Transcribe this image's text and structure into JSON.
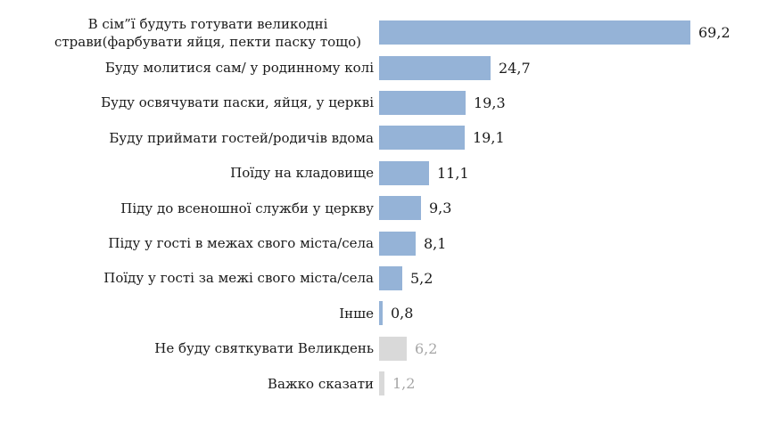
{
  "chart": {
    "title": "",
    "background": "#ffffff",
    "colors": {
      "bar_primary": "#95b3d7",
      "bar_muted": "#d9d9d9",
      "label_text": "#1a1a1a",
      "value_text": "#1a1a1a",
      "value_text_muted": "#a6a6a6"
    }
  },
  "chart_data": {
    "type": "bar",
    "orientation": "horizontal",
    "title": "",
    "xlabel": "",
    "ylabel": "",
    "grid": false,
    "legend": false,
    "axis_lines": false,
    "xlim": [
      0,
      75
    ],
    "categories": [
      "В сім”ї будуть готувати великодні страви(фарбувати яйця, пекти паску тощо)",
      "Буду молитися сам/ у родинному колі",
      "Буду освячувати паски, яйця, у церкві",
      "Буду приймати гостей/родичів вдома",
      "Поїду на кладовище",
      "Піду до всеношної служби у церкву",
      "Піду у гості в межах свого міста/села",
      "Поїду у гості за межі свого міста/села",
      "Інше",
      "Не буду святкувати Великдень",
      "Важко сказати"
    ],
    "values": [
      69.2,
      24.7,
      19.3,
      19.1,
      11.1,
      9.3,
      8.1,
      5.2,
      0.8,
      6.2,
      1.2
    ],
    "value_labels": [
      "69,2",
      "24,7",
      "19,3",
      "19,1",
      "11,1",
      "9,3",
      "8,1",
      "5,2",
      "0,8",
      "6,2",
      "1,2"
    ],
    "muted_flags": [
      false,
      false,
      false,
      false,
      false,
      false,
      false,
      false,
      false,
      true,
      true
    ],
    "muted_categories": [
      "Не буду святкувати Великдень",
      "Важко сказати"
    ]
  }
}
